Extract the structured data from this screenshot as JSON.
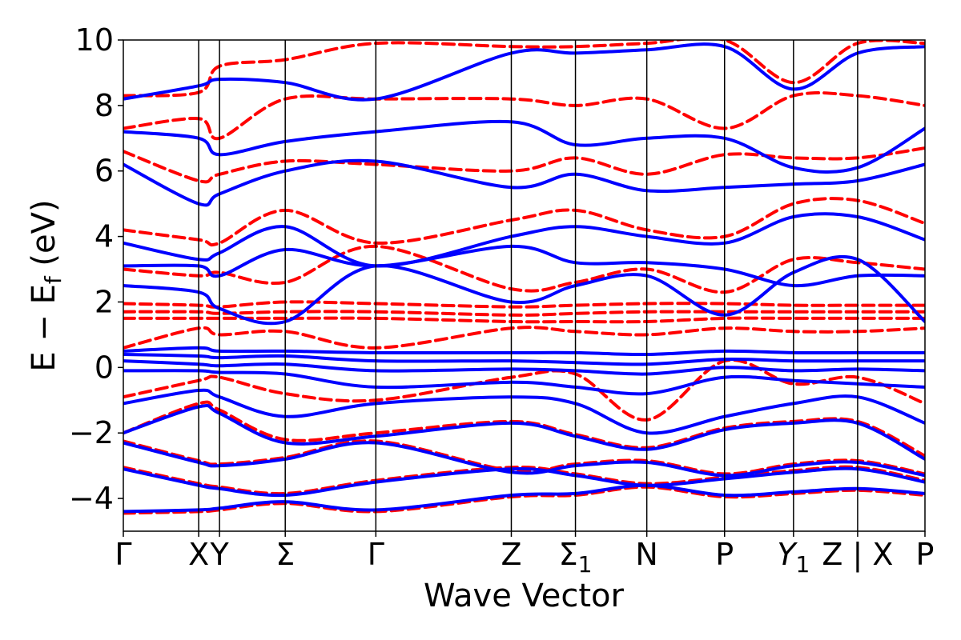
{
  "chart_data": {
    "type": "line",
    "xlabel": "Wave Vector",
    "ylabel_main": "E − E",
    "ylabel_sub": "f",
    "ylabel_unit": " (eV)",
    "ylim": [
      -5,
      10
    ],
    "yticks": [
      -4,
      -2,
      0,
      2,
      4,
      6,
      8,
      10
    ],
    "ytick_labels": [
      "−4",
      "−2",
      "0",
      "2",
      "4",
      "6",
      "8",
      "10"
    ],
    "k_range": [
      0,
      10
    ],
    "kpoints": [
      {
        "pos": 0.0,
        "label": "Γ",
        "sub": ""
      },
      {
        "pos": 0.94,
        "label": "X",
        "sub": ""
      },
      {
        "pos": 1.2,
        "label": "Y",
        "sub": ""
      },
      {
        "pos": 2.02,
        "label": "Σ",
        "sub": ""
      },
      {
        "pos": 3.15,
        "label": "Γ",
        "sub": ""
      },
      {
        "pos": 4.84,
        "label": "Z",
        "sub": ""
      },
      {
        "pos": 5.64,
        "label": "Σ",
        "sub": "1"
      },
      {
        "pos": 6.53,
        "label": "N",
        "sub": ""
      },
      {
        "pos": 7.5,
        "label": "P",
        "sub": ""
      },
      {
        "pos": 8.36,
        "label": "Y",
        "sub": "1",
        "italic": true
      },
      {
        "pos": 9.16,
        "label": "Z | X",
        "sub": ""
      },
      {
        "pos": 10.0,
        "label": "P",
        "sub": ""
      }
    ],
    "series_style": [
      {
        "color": "#0000ff",
        "dash": "solid"
      },
      {
        "color": "#ff0000",
        "dash": "dashed"
      }
    ],
    "series": [
      {
        "bands": [
          {
            "x": [
              0,
              0.94,
              1.2,
              2.02,
              3.15,
              4.84,
              5.64,
              6.53,
              7.5,
              8.36,
              9.16,
              10
            ],
            "y": [
              -4.4,
              -4.35,
              -4.3,
              -4.1,
              -4.35,
              -3.9,
              -3.85,
              -3.6,
              -3.9,
              -3.8,
              -3.7,
              -3.85
            ]
          },
          {
            "x": [
              0,
              0.94,
              1.2,
              2.02,
              3.15,
              4.84,
              5.64,
              6.53,
              7.5,
              8.36,
              9.16,
              10
            ],
            "y": [
              -3.1,
              -3.6,
              -3.7,
              -3.9,
              -3.5,
              -3.1,
              -3.3,
              -3.6,
              -3.4,
              -3.2,
              -3.1,
              -3.5
            ]
          },
          {
            "x": [
              0,
              0.94,
              1.2,
              2.02,
              3.15,
              4.84,
              5.64,
              6.53,
              7.5,
              8.36,
              9.16,
              10
            ],
            "y": [
              -2.3,
              -2.9,
              -3.0,
              -2.8,
              -2.3,
              -3.2,
              -3.0,
              -2.9,
              -3.3,
              -3.0,
              -2.9,
              -3.3
            ]
          },
          {
            "x": [
              0,
              0.94,
              1.2,
              2.02,
              3.15,
              4.84,
              5.64,
              6.53,
              7.5,
              8.36,
              9.16,
              10
            ],
            "y": [
              -2.0,
              -1.2,
              -1.4,
              -2.3,
              -2.1,
              -1.7,
              -2.1,
              -2.5,
              -1.9,
              -1.7,
              -1.7,
              -2.8
            ]
          },
          {
            "x": [
              0,
              0.94,
              1.2,
              2.02,
              3.15,
              4.84,
              5.64,
              6.53,
              7.5,
              8.36,
              9.16,
              10
            ],
            "y": [
              -1.1,
              -0.7,
              -0.9,
              -1.5,
              -1.1,
              -0.9,
              -1.1,
              -2.0,
              -1.5,
              -1.1,
              -0.9,
              -1.7
            ]
          },
          {
            "x": [
              0,
              0.94,
              1.2,
              2.02,
              3.15,
              4.84,
              5.64,
              6.53,
              7.5,
              8.36,
              9.16,
              10
            ],
            "y": [
              -0.1,
              -0.1,
              -0.15,
              -0.2,
              -0.6,
              -0.45,
              -0.6,
              -0.8,
              -0.3,
              -0.4,
              -0.5,
              -0.6
            ]
          },
          {
            "x": [
              0,
              0.94,
              1.2,
              2.02,
              3.15,
              4.84,
              5.64,
              6.53,
              7.5,
              8.36,
              9.16,
              10
            ],
            "y": [
              0.2,
              0.1,
              0.05,
              0.1,
              -0.1,
              -0.05,
              -0.1,
              -0.2,
              0.0,
              -0.1,
              -0.05,
              -0.1
            ]
          },
          {
            "x": [
              0,
              0.94,
              1.2,
              2.02,
              3.15,
              4.84,
              5.64,
              6.53,
              7.5,
              8.36,
              9.16,
              10
            ],
            "y": [
              0.4,
              0.35,
              0.3,
              0.35,
              0.2,
              0.2,
              0.15,
              0.1,
              0.25,
              0.2,
              0.2,
              0.2
            ]
          },
          {
            "x": [
              0,
              0.94,
              1.2,
              2.02,
              3.15,
              4.84,
              5.64,
              6.53,
              7.5,
              8.36,
              9.16,
              10
            ],
            "y": [
              0.5,
              0.6,
              0.5,
              0.5,
              0.45,
              0.45,
              0.45,
              0.4,
              0.5,
              0.45,
              0.45,
              0.45
            ]
          },
          {
            "x": [
              0,
              0.94,
              1.2,
              2.02,
              3.15,
              4.84,
              5.64,
              6.53,
              7.5,
              8.36,
              9.16,
              10
            ],
            "y": [
              2.5,
              2.3,
              1.8,
              1.4,
              3.1,
              2.0,
              2.5,
              2.8,
              1.6,
              2.9,
              3.3,
              1.4
            ]
          },
          {
            "x": [
              0,
              0.94,
              1.2,
              2.02,
              3.15,
              4.84,
              5.64,
              6.53,
              7.5,
              8.36,
              9.16,
              10
            ],
            "y": [
              3.1,
              3.1,
              2.8,
              3.6,
              3.1,
              3.7,
              3.2,
              3.2,
              3.0,
              2.5,
              2.8,
              2.8
            ]
          },
          {
            "x": [
              0,
              0.94,
              1.2,
              2.02,
              3.15,
              4.84,
              5.64,
              6.53,
              7.5,
              8.36,
              9.16,
              10
            ],
            "y": [
              3.8,
              3.3,
              3.5,
              4.3,
              3.1,
              4.0,
              4.3,
              4.0,
              3.8,
              4.6,
              4.6,
              3.9
            ]
          },
          {
            "x": [
              0,
              0.94,
              1.2,
              2.02,
              3.15,
              4.84,
              5.64,
              6.53,
              7.5,
              8.36,
              9.16,
              10
            ],
            "y": [
              6.2,
              5.0,
              5.3,
              6.0,
              6.3,
              5.5,
              5.9,
              5.4,
              5.5,
              5.6,
              5.7,
              6.2
            ]
          },
          {
            "x": [
              0,
              0.94,
              1.2,
              2.02,
              3.15,
              4.84,
              5.64,
              6.53,
              7.5,
              8.36,
              9.16,
              10
            ],
            "y": [
              7.2,
              7.0,
              6.5,
              6.9,
              7.2,
              7.5,
              6.8,
              7.0,
              7.0,
              6.1,
              6.1,
              7.3
            ]
          },
          {
            "x": [
              0,
              0.94,
              1.2,
              2.02,
              3.15,
              4.84,
              5.64,
              6.53,
              7.5,
              8.36,
              9.16,
              10
            ],
            "y": [
              8.2,
              8.6,
              8.8,
              8.7,
              8.2,
              9.6,
              9.6,
              9.7,
              9.8,
              8.5,
              9.6,
              9.8
            ]
          }
        ]
      },
      {
        "bands": [
          {
            "x": [
              0,
              0.94,
              1.2,
              2.02,
              3.15,
              4.84,
              5.64,
              6.53,
              7.5,
              8.36,
              9.16,
              10
            ],
            "y": [
              -4.45,
              -4.4,
              -4.35,
              -4.15,
              -4.4,
              -3.95,
              -3.9,
              -3.65,
              -3.95,
              -3.85,
              -3.75,
              -3.9
            ]
          },
          {
            "x": [
              0,
              0.94,
              1.2,
              2.02,
              3.15,
              4.84,
              5.64,
              6.53,
              7.5,
              8.36,
              9.16,
              10
            ],
            "y": [
              -3.05,
              -3.55,
              -3.65,
              -3.85,
              -3.45,
              -3.05,
              -3.25,
              -3.55,
              -3.35,
              -3.15,
              -3.05,
              -3.45
            ]
          },
          {
            "x": [
              0,
              0.94,
              1.2,
              2.02,
              3.15,
              4.84,
              5.64,
              6.53,
              7.5,
              8.36,
              9.16,
              10
            ],
            "y": [
              -2.25,
              -2.85,
              -2.95,
              -2.75,
              -2.25,
              -3.15,
              -2.95,
              -2.85,
              -3.25,
              -2.95,
              -2.85,
              -3.25
            ]
          },
          {
            "x": [
              0,
              0.94,
              1.2,
              2.02,
              3.15,
              4.84,
              5.64,
              6.53,
              7.5,
              8.36,
              9.16,
              10
            ],
            "y": [
              -2.0,
              -1.1,
              -1.3,
              -2.2,
              -2.0,
              -1.65,
              -2.05,
              -2.45,
              -1.85,
              -1.65,
              -1.65,
              -2.7
            ]
          },
          {
            "x": [
              0,
              0.94,
              1.2,
              2.02,
              3.15,
              4.84,
              5.64,
              6.53,
              7.5,
              8.36,
              9.16,
              10
            ],
            "y": [
              -0.9,
              -0.4,
              -0.3,
              -0.8,
              -1.0,
              -0.3,
              -0.2,
              -1.6,
              0.2,
              -0.5,
              -0.3,
              -1.1
            ]
          },
          {
            "x": [
              0,
              0.94,
              1.2,
              2.02,
              3.15,
              4.84,
              5.64,
              6.53,
              7.5,
              8.36,
              9.16,
              10
            ],
            "y": [
              0.6,
              1.2,
              1.0,
              1.1,
              0.6,
              1.2,
              1.1,
              1.0,
              1.2,
              1.1,
              1.1,
              1.2
            ]
          },
          {
            "x": [
              0,
              0.94,
              1.2,
              2.02,
              3.15,
              4.84,
              5.64,
              6.53,
              7.5,
              8.36,
              9.16,
              10
            ],
            "y": [
              1.5,
              1.5,
              1.5,
              1.5,
              1.5,
              1.4,
              1.4,
              1.4,
              1.5,
              1.5,
              1.5,
              1.5
            ]
          },
          {
            "x": [
              0,
              0.94,
              1.2,
              2.02,
              3.15,
              4.84,
              5.64,
              6.53,
              7.5,
              8.36,
              9.16,
              10
            ],
            "y": [
              1.7,
              1.7,
              1.65,
              1.7,
              1.7,
              1.6,
              1.65,
              1.7,
              1.7,
              1.7,
              1.7,
              1.7
            ]
          },
          {
            "x": [
              0,
              0.94,
              1.2,
              2.02,
              3.15,
              4.84,
              5.64,
              6.53,
              7.5,
              8.36,
              9.16,
              10
            ],
            "y": [
              1.95,
              1.9,
              1.85,
              2.0,
              1.95,
              1.85,
              1.9,
              1.95,
              1.95,
              1.9,
              1.9,
              1.9
            ]
          },
          {
            "x": [
              0,
              0.94,
              1.2,
              2.02,
              3.15,
              4.84,
              5.64,
              6.53,
              7.5,
              8.36,
              9.16,
              10
            ],
            "y": [
              3.0,
              2.8,
              2.9,
              2.6,
              3.7,
              2.4,
              2.6,
              3.0,
              2.3,
              3.3,
              3.2,
              3.0
            ]
          },
          {
            "x": [
              0,
              0.94,
              1.2,
              2.02,
              3.15,
              4.84,
              5.64,
              6.53,
              7.5,
              8.36,
              9.16,
              10
            ],
            "y": [
              4.2,
              3.9,
              3.8,
              4.8,
              3.8,
              4.5,
              4.8,
              4.2,
              4.0,
              5.0,
              5.1,
              4.4
            ]
          },
          {
            "x": [
              0,
              0.94,
              1.2,
              2.02,
              3.15,
              4.84,
              5.64,
              6.53,
              7.5,
              8.36,
              9.16,
              10
            ],
            "y": [
              6.6,
              5.7,
              5.9,
              6.3,
              6.2,
              6.0,
              6.4,
              5.9,
              6.5,
              6.4,
              6.4,
              6.7
            ]
          },
          {
            "x": [
              0,
              0.94,
              1.2,
              2.02,
              3.15,
              4.84,
              5.64,
              6.53,
              7.5,
              8.36,
              9.16,
              10
            ],
            "y": [
              7.3,
              7.6,
              7.0,
              8.2,
              8.2,
              8.2,
              8.0,
              8.2,
              7.3,
              8.3,
              8.3,
              8.0
            ]
          },
          {
            "x": [
              0,
              0.94,
              1.2,
              2.02,
              3.15,
              4.84,
              5.64,
              6.53,
              7.5,
              8.36,
              9.16,
              10
            ],
            "y": [
              8.3,
              8.4,
              9.2,
              9.4,
              9.9,
              9.8,
              9.8,
              9.9,
              10.0,
              8.7,
              9.9,
              9.9
            ]
          }
        ]
      }
    ]
  }
}
